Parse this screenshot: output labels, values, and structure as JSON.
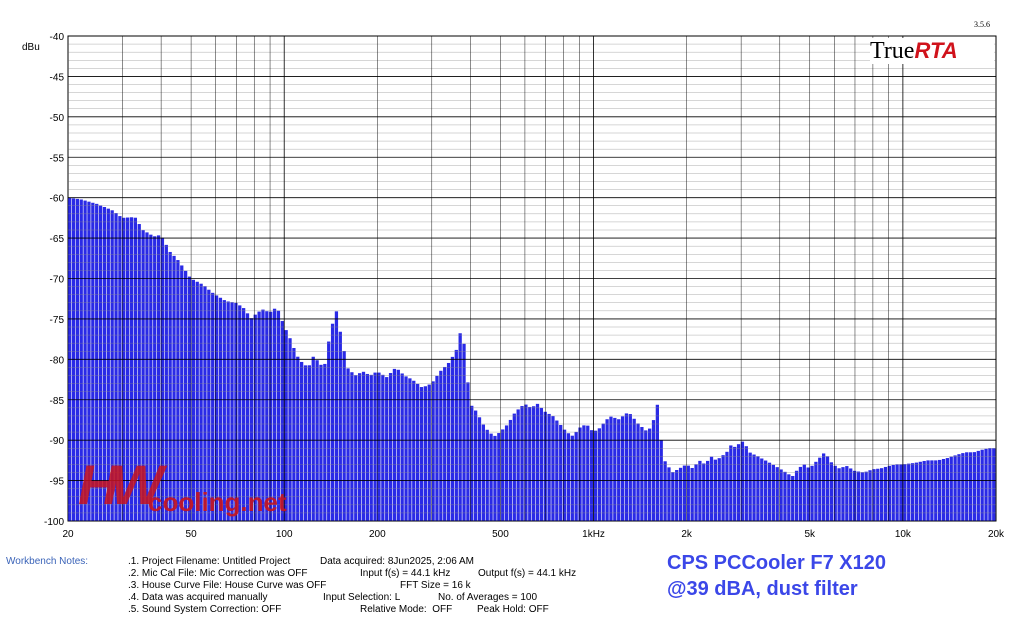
{
  "app": {
    "version": "3.5.6",
    "logo_left": "True",
    "logo_right": "RTA"
  },
  "watermark": {
    "left": "HW",
    "right": "cooling.net"
  },
  "caption": {
    "line1": "CPS PCCooler F7 X120",
    "line2": "@39 dBA, dust filter"
  },
  "notes": {
    "label": "Workbench Notes:",
    "lines": [
      ".1. Project Filename: Untitled Project",
      ".2. Mic Cal File: Mic Correction was OFF",
      ".3. House Curve File: House Curve was OFF",
      ".4. Data was acquired manually",
      ".5. Sound System Correction: OFF"
    ],
    "col2": [
      "Data acquired: 8Jun2025, 2:06 AM",
      "Input f(s) = 44.1 kHz",
      "FFT Size = 16 k",
      "Input Selection: L",
      "Relative Mode:  OFF"
    ],
    "col3": [
      "",
      "Output f(s) = 44.1 kHz",
      "",
      "No. of Averages = 100",
      "Peak Hold: OFF"
    ]
  },
  "chart_data": {
    "type": "bar",
    "ylabel": "dBu",
    "ylim": [
      -100,
      -40
    ],
    "xlim": [
      20,
      20000
    ],
    "x_scale": "log",
    "grid": true,
    "bar_color": "#2a2ae6",
    "y_ticks": [
      "-40",
      "-45",
      "-50",
      "-55",
      "-60",
      "-65",
      "-70",
      "-75",
      "-80",
      "-85",
      "-90",
      "-95",
      "-100"
    ],
    "x_ticks": [
      {
        "f": 20,
        "label": "20"
      },
      {
        "f": 50,
        "label": "50"
      },
      {
        "f": 100,
        "label": "100"
      },
      {
        "f": 200,
        "label": "200"
      },
      {
        "f": 500,
        "label": "500"
      },
      {
        "f": 1000,
        "label": "1kHz"
      },
      {
        "f": 2000,
        "label": "2k"
      },
      {
        "f": 5000,
        "label": "5k"
      },
      {
        "f": 10000,
        "label": "10k"
      },
      {
        "f": 20000,
        "label": "20k"
      }
    ],
    "spectrum": [
      [
        20,
        -60.0
      ],
      [
        22,
        -60.2
      ],
      [
        25,
        -60.8
      ],
      [
        28,
        -61.6
      ],
      [
        30,
        -62.5
      ],
      [
        33,
        -62.4
      ],
      [
        35,
        -64.0
      ],
      [
        38,
        -64.8
      ],
      [
        40,
        -64.6
      ],
      [
        43,
        -66.8
      ],
      [
        45,
        -67.5
      ],
      [
        48,
        -69.0
      ],
      [
        50,
        -70.0
      ],
      [
        55,
        -70.8
      ],
      [
        58,
        -71.6
      ],
      [
        60,
        -72.0
      ],
      [
        65,
        -72.8
      ],
      [
        70,
        -73.0
      ],
      [
        75,
        -73.8
      ],
      [
        78,
        -75.0
      ],
      [
        80,
        -74.6
      ],
      [
        85,
        -73.8
      ],
      [
        90,
        -74.2
      ],
      [
        95,
        -73.5
      ],
      [
        100,
        -75.8
      ],
      [
        105,
        -77.5
      ],
      [
        110,
        -79.5
      ],
      [
        115,
        -80.5
      ],
      [
        120,
        -81.0
      ],
      [
        125,
        -79.5
      ],
      [
        130,
        -80.5
      ],
      [
        135,
        -81.0
      ],
      [
        140,
        -77.5
      ],
      [
        143,
        -76.0
      ],
      [
        147,
        -73.5
      ],
      [
        150,
        -75.5
      ],
      [
        155,
        -78.0
      ],
      [
        160,
        -81.0
      ],
      [
        170,
        -82.0
      ],
      [
        180,
        -81.5
      ],
      [
        190,
        -82.0
      ],
      [
        200,
        -81.5
      ],
      [
        215,
        -82.2
      ],
      [
        230,
        -81.0
      ],
      [
        245,
        -82.0
      ],
      [
        260,
        -82.5
      ],
      [
        280,
        -83.5
      ],
      [
        300,
        -83.0
      ],
      [
        320,
        -81.5
      ],
      [
        340,
        -80.5
      ],
      [
        360,
        -79.0
      ],
      [
        370,
        -77.0
      ],
      [
        376,
        -76.0
      ],
      [
        382,
        -78.0
      ],
      [
        390,
        -81.5
      ],
      [
        400,
        -85.5
      ],
      [
        420,
        -86.5
      ],
      [
        440,
        -88.0
      ],
      [
        460,
        -89.0
      ],
      [
        480,
        -89.5
      ],
      [
        500,
        -89.0
      ],
      [
        530,
        -88.0
      ],
      [
        560,
        -86.5
      ],
      [
        600,
        -85.5
      ],
      [
        630,
        -86.0
      ],
      [
        660,
        -85.5
      ],
      [
        700,
        -86.5
      ],
      [
        740,
        -87.0
      ],
      [
        780,
        -88.0
      ],
      [
        820,
        -89.0
      ],
      [
        860,
        -89.5
      ],
      [
        900,
        -88.5
      ],
      [
        950,
        -88.0
      ],
      [
        1000,
        -89.0
      ],
      [
        1050,
        -88.5
      ],
      [
        1100,
        -87.5
      ],
      [
        1150,
        -87.0
      ],
      [
        1200,
        -87.5
      ],
      [
        1300,
        -86.5
      ],
      [
        1400,
        -88.0
      ],
      [
        1500,
        -89.0
      ],
      [
        1550,
        -88.0
      ],
      [
        1600,
        -86.5
      ],
      [
        1620,
        -85.0
      ],
      [
        1650,
        -89.5
      ],
      [
        1700,
        -92.5
      ],
      [
        1800,
        -94.0
      ],
      [
        1900,
        -93.5
      ],
      [
        2000,
        -93.0
      ],
      [
        2100,
        -93.5
      ],
      [
        2200,
        -92.5
      ],
      [
        2300,
        -93.0
      ],
      [
        2400,
        -92.0
      ],
      [
        2500,
        -92.5
      ],
      [
        2600,
        -92.0
      ],
      [
        2700,
        -91.5
      ],
      [
        2800,
        -90.5
      ],
      [
        2900,
        -91.0
      ],
      [
        3000,
        -90.0
      ],
      [
        3100,
        -90.5
      ],
      [
        3200,
        -91.5
      ],
      [
        3400,
        -92.0
      ],
      [
        3600,
        -92.5
      ],
      [
        3800,
        -93.0
      ],
      [
        4000,
        -93.5
      ],
      [
        4200,
        -94.0
      ],
      [
        4400,
        -94.5
      ],
      [
        4600,
        -93.5
      ],
      [
        4800,
        -93.0
      ],
      [
        5000,
        -93.5
      ],
      [
        5300,
        -92.5
      ],
      [
        5600,
        -91.5
      ],
      [
        5900,
        -92.8
      ],
      [
        6200,
        -93.5
      ],
      [
        6600,
        -93.2
      ],
      [
        7000,
        -93.8
      ],
      [
        7500,
        -94.0
      ],
      [
        8000,
        -93.6
      ],
      [
        8500,
        -93.5
      ],
      [
        9000,
        -93.2
      ],
      [
        9500,
        -93.0
      ],
      [
        10000,
        -93.0
      ],
      [
        11000,
        -92.8
      ],
      [
        12000,
        -92.5
      ],
      [
        13000,
        -92.5
      ],
      [
        14000,
        -92.2
      ],
      [
        15000,
        -91.8
      ],
      [
        16000,
        -91.5
      ],
      [
        17000,
        -91.5
      ],
      [
        18000,
        -91.2
      ],
      [
        19000,
        -91.0
      ],
      [
        20000,
        -91.0
      ]
    ]
  }
}
